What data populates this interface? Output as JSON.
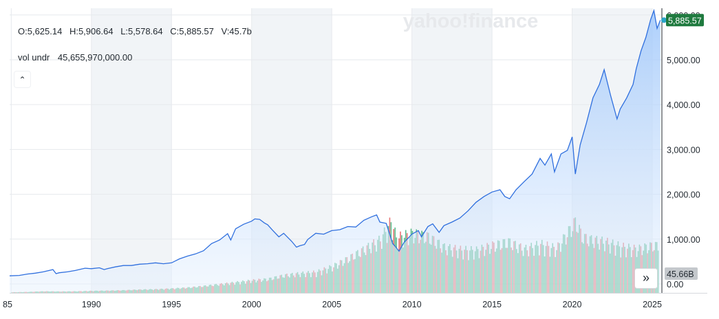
{
  "watermark": "yahoo!finance",
  "ohlc": {
    "open": "O:5,625.14",
    "high": "H:5,906.64",
    "low": "L:5,578.64",
    "close": "C:5,885.57",
    "volume": "V:45.7b"
  },
  "volume_panel": {
    "label": "vol undr",
    "value": "45,655,970,000.00"
  },
  "controls": {
    "collapse_glyph": "⌃",
    "forward_glyph": "»"
  },
  "price_tag": "5,885.57",
  "volume_tag": "45.66B",
  "colors": {
    "line": "#2f6fde",
    "area_top": "#9fc7fb",
    "area_bottom": "#e8f2fe",
    "up_bar": "#40b07a",
    "down_bar": "#e35b5b",
    "price_tag": "#1f7a3f",
    "volume_tag": "#c4c8cc",
    "band": "#f1f4f7",
    "grid": "#e6e9ed"
  },
  "chart_data": {
    "type": "area",
    "title": "",
    "xlabel": "",
    "ylabel": "",
    "x_ticks": [
      "85",
      "1990",
      "1995",
      "2000",
      "2005",
      "2010",
      "2015",
      "2020",
      "2025"
    ],
    "y_ticks": [
      "0.00",
      "1,000.00",
      "2,000.00",
      "3,000.00",
      "4,000.00",
      "5,000.00",
      "6,000.00"
    ],
    "xlim": [
      1984.9,
      2025.6
    ],
    "ylim": [
      -200,
      6150
    ],
    "grid": true,
    "series": [
      {
        "x": [
          1984.9,
          1985.5,
          1986.0,
          1986.5,
          1987.0,
          1987.6,
          1987.8,
          1988.0,
          1988.5,
          1989.0,
          1989.6,
          1990.0,
          1990.5,
          1990.8,
          1991.0,
          1991.5,
          1992.0,
          1992.5,
          1993.0,
          1993.5,
          1994.0,
          1994.5,
          1995.0,
          1995.5,
          1996.0,
          1996.5,
          1997.0,
          1997.5,
          1998.0,
          1998.5,
          1998.7,
          1999.0,
          1999.5,
          2000.0,
          2000.2,
          2000.5,
          2000.8,
          2001.0,
          2001.3,
          2001.7,
          2002.0,
          2002.5,
          2002.8,
          2003.0,
          2003.3,
          2003.5,
          2004.0,
          2004.5,
          2005.0,
          2005.5,
          2006.0,
          2006.5,
          2007.0,
          2007.5,
          2007.8,
          2008.0,
          2008.4,
          2008.8,
          2009.0,
          2009.2,
          2009.5,
          2010.0,
          2010.4,
          2010.6,
          2011.0,
          2011.3,
          2011.7,
          2012.0,
          2012.5,
          2013.0,
          2013.5,
          2014.0,
          2014.5,
          2015.0,
          2015.5,
          2015.8,
          2016.1,
          2016.5,
          2017.0,
          2017.5,
          2018.0,
          2018.3,
          2018.7,
          2018.9,
          2019.3,
          2019.7,
          2020.0,
          2020.2,
          2020.5,
          2020.9,
          2021.3,
          2021.7,
          2022.0,
          2022.4,
          2022.8,
          2023.0,
          2023.4,
          2023.8,
          2024.0,
          2024.3,
          2024.6,
          2024.9,
          2025.1,
          2025.3,
          2025.5
        ],
        "y": [
          180,
          190,
          220,
          240,
          270,
          320,
          230,
          250,
          270,
          300,
          350,
          340,
          360,
          320,
          340,
          380,
          410,
          410,
          440,
          450,
          470,
          450,
          470,
          560,
          620,
          670,
          740,
          900,
          980,
          1120,
          980,
          1230,
          1330,
          1400,
          1450,
          1440,
          1360,
          1320,
          1200,
          1050,
          1130,
          950,
          820,
          850,
          880,
          990,
          1130,
          1110,
          1190,
          1210,
          1280,
          1270,
          1420,
          1500,
          1540,
          1380,
          1350,
          900,
          820,
          730,
          920,
          1110,
          1190,
          1050,
          1280,
          1340,
          1150,
          1300,
          1380,
          1470,
          1630,
          1820,
          1950,
          2050,
          2100,
          1950,
          1900,
          2100,
          2280,
          2450,
          2800,
          2650,
          2900,
          2500,
          2900,
          2980,
          3280,
          2450,
          3100,
          3600,
          4150,
          4450,
          4780,
          4200,
          3680,
          3900,
          4150,
          4450,
          4800,
          5200,
          5500,
          5900,
          6100,
          5700,
          5885
        ]
      },
      {
        "name": "vol undr",
        "unit": "billions",
        "x": [
          1985,
          1986,
          1987,
          1988,
          1989,
          1990,
          1991,
          1992,
          1993,
          1994,
          1995,
          1996,
          1997,
          1998,
          1999,
          2000,
          2001,
          2002,
          2003,
          2004,
          2005,
          2006,
          2007,
          2008,
          2008.7,
          2009,
          2010,
          2011,
          2012,
          2013,
          2014,
          2015,
          2016,
          2017,
          2018,
          2019,
          2020.2,
          2020.6,
          2021,
          2022,
          2023,
          2024,
          2025
        ],
        "y": [
          1,
          1.5,
          2.5,
          2.2,
          2.5,
          3.2,
          3.6,
          4.2,
          5.3,
          5.8,
          7,
          8.5,
          11,
          14,
          17,
          20,
          22,
          28,
          31,
          33,
          42,
          55,
          70,
          85,
          115,
          88,
          95,
          90,
          73,
          69,
          68,
          76,
          82,
          70,
          78,
          71,
          115,
          90,
          86,
          82,
          74,
          70,
          76
        ]
      }
    ]
  }
}
